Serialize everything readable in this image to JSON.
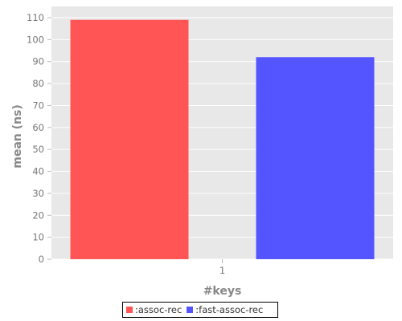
{
  "chart_data": {
    "type": "bar",
    "categories": [
      "1"
    ],
    "series": [
      {
        "name": ":assoc-rec",
        "values": [
          109
        ],
        "color": "#ff5555"
      },
      {
        "name": ":fast-assoc-rec",
        "values": [
          92
        ],
        "color": "#5555ff"
      }
    ],
    "xlabel": "#keys",
    "ylabel": "mean (ns)",
    "ylim": [
      0,
      110
    ],
    "yticks": [
      "0",
      "10",
      "20",
      "30",
      "40",
      "50",
      "60",
      "70",
      "80",
      "90",
      "100",
      "110"
    ],
    "grid": true,
    "plot_background": "#e8e8e8",
    "legend_position": "bottom"
  }
}
